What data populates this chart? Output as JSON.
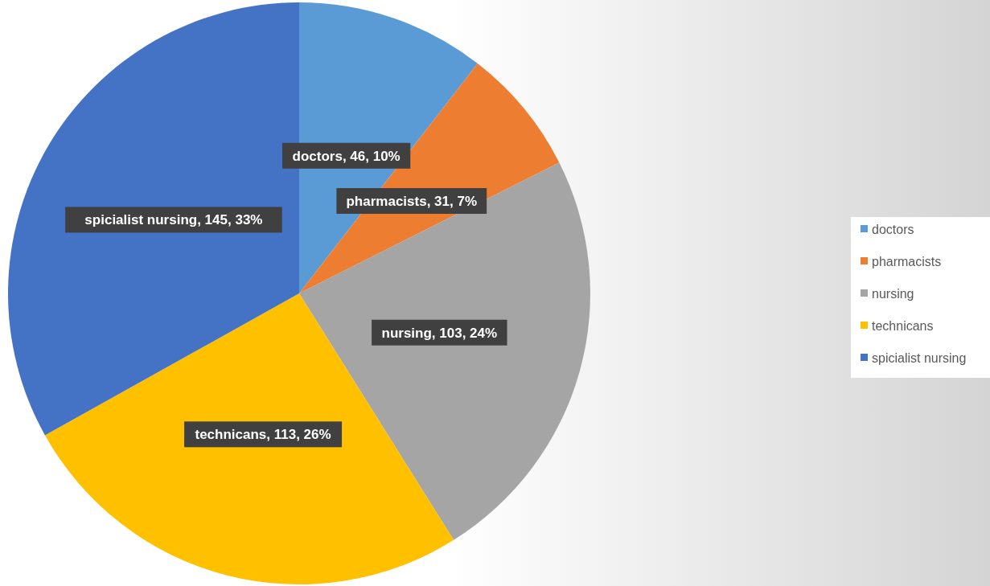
{
  "chart_data": {
    "type": "pie",
    "categories": [
      "doctors",
      "pharmacists",
      "nursing",
      "technicans",
      "spicialist nursing"
    ],
    "values": [
      46,
      31,
      103,
      113,
      145
    ],
    "colors": [
      "#5b9bd5",
      "#ed7d31",
      "#a5a5a5",
      "#ffc000",
      "#4472c4"
    ],
    "value_labels": [
      "doctors, 46, 10%",
      "pharmacists, 31, 7%",
      "nursing, 103, 24%",
      "technicans, 113, 26%",
      "spicialist nursing, 145, 33%"
    ],
    "legend": "right"
  }
}
